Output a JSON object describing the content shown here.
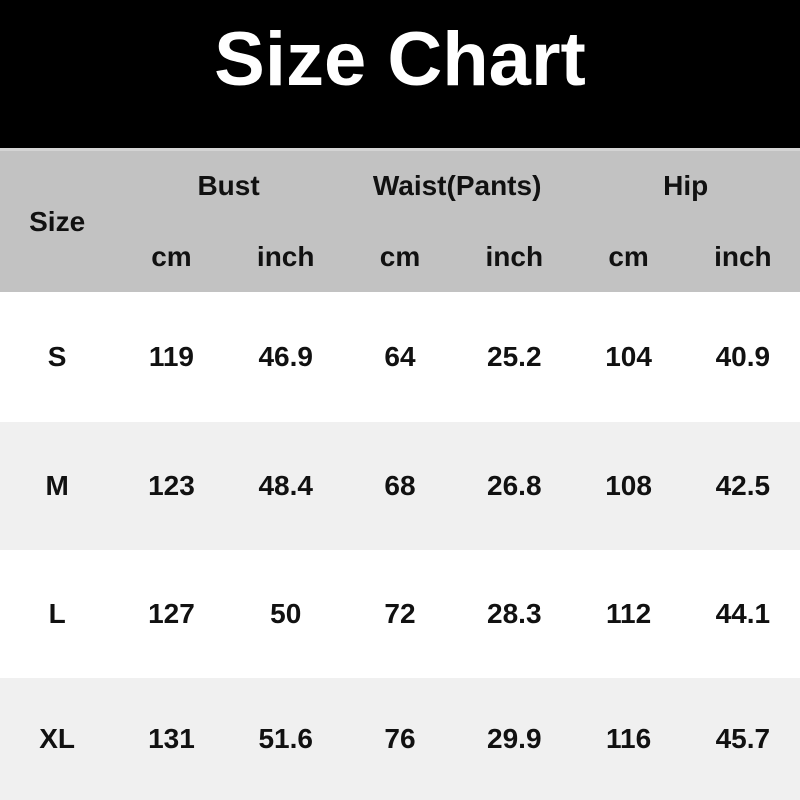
{
  "title": "Size Chart",
  "table": {
    "corner_header": "Size",
    "groups": [
      {
        "label": "Bust",
        "units": [
          "cm",
          "inch"
        ]
      },
      {
        "label": "Waist(Pants)",
        "units": [
          "cm",
          "inch"
        ]
      },
      {
        "label": "Hip",
        "units": [
          "cm",
          "inch"
        ]
      }
    ],
    "rows": [
      {
        "size": "S",
        "values": [
          "119",
          "46.9",
          "64",
          "25.2",
          "104",
          "40.9"
        ]
      },
      {
        "size": "M",
        "values": [
          "123",
          "48.4",
          "68",
          "26.8",
          "108",
          "42.5"
        ]
      },
      {
        "size": "L",
        "values": [
          "127",
          "50",
          "72",
          "28.3",
          "112",
          "44.1"
        ]
      },
      {
        "size": "XL",
        "values": [
          "131",
          "51.6",
          "76",
          "29.9",
          "116",
          "45.7"
        ]
      }
    ]
  },
  "chart_data": {
    "type": "table",
    "title": "Size Chart",
    "columns": [
      "Size",
      "Bust cm",
      "Bust inch",
      "Waist(Pants) cm",
      "Waist(Pants) inch",
      "Hip cm",
      "Hip inch"
    ],
    "rows": [
      [
        "S",
        119,
        46.9,
        64,
        25.2,
        104,
        40.9
      ],
      [
        "M",
        123,
        48.4,
        68,
        26.8,
        108,
        42.5
      ],
      [
        "L",
        127,
        50,
        72,
        28.3,
        112,
        44.1
      ],
      [
        "XL",
        131,
        51.6,
        76,
        29.9,
        116,
        45.7
      ]
    ]
  },
  "colors": {
    "banner_bg": "#000000",
    "title_text": "#ffffff",
    "header_bg": "#c2c2c2",
    "row_bg": "#ffffff",
    "row_alt_bg": "#f0f0f0",
    "text": "#111111"
  }
}
